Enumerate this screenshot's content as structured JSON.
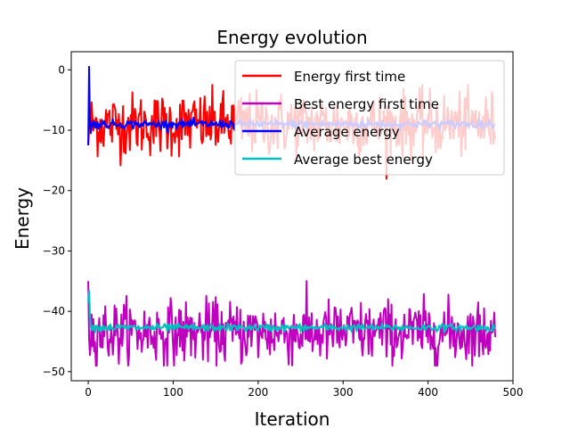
{
  "chart_data": {
    "type": "line",
    "title": "Energy evolution",
    "xlabel": "Iteration",
    "ylabel": "Energy",
    "xlim": [
      -20,
      500
    ],
    "ylim": [
      -51.5,
      3
    ],
    "xticks": [
      0,
      100,
      200,
      300,
      400,
      500
    ],
    "yticks": [
      0,
      -10,
      -20,
      -30,
      -40,
      -50
    ],
    "grid": false,
    "legend_position": "top-right",
    "iterations": 480,
    "series": [
      {
        "name": "Energy first time",
        "color": "#ff0000",
        "kind": "noisy",
        "start": -12.5,
        "mean": -9,
        "std": 2.6,
        "min": -18.5,
        "max": -2.5
      },
      {
        "name": "Best energy first time",
        "color": "#bf00bf",
        "kind": "noisy",
        "start": -35,
        "mean": -43.5,
        "std": 2.6,
        "min": -49,
        "max": -31.5
      },
      {
        "name": "Average energy",
        "color": "#0000ff",
        "kind": "running_average",
        "start": -12.5,
        "early": [
          -12.5,
          0.5,
          -8,
          -10.5,
          -9.5,
          -8.5
        ],
        "mean": -9,
        "noise": 0.35
      },
      {
        "name": "Average best energy",
        "color": "#00bfbf",
        "kind": "running_average",
        "start": -38.5,
        "early": [
          -38.5,
          -36.5,
          -40.5,
          -42.5
        ],
        "mean": -42.7,
        "noise": 0.3
      }
    ]
  }
}
